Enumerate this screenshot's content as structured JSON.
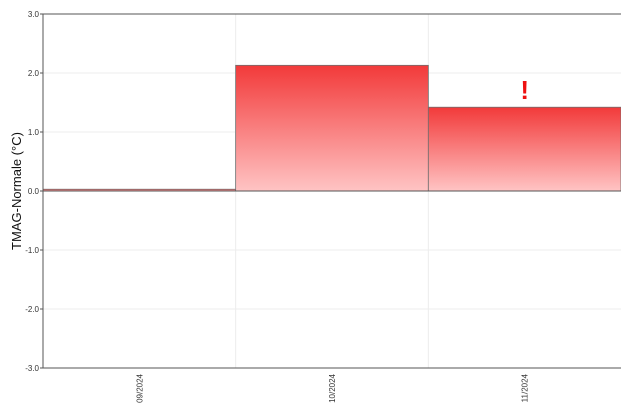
{
  "chart_data": {
    "type": "bar",
    "categories": [
      "09/2024",
      "10/2024",
      "11/2024"
    ],
    "values": [
      0.03,
      2.13,
      1.42
    ],
    "xlabel": "",
    "ylabel": "TMAG-Normale (°C)",
    "ylim": [
      -3.0,
      3.0
    ],
    "yticks": [
      "3.0",
      "2.0",
      "1.0",
      "0.0",
      "-1.0",
      "-2.0",
      "-3.0"
    ],
    "grid": true,
    "annotations": [
      {
        "category": "11/2024",
        "text": "!",
        "color": "#ee1111"
      }
    ],
    "colors": {
      "bar_top": "#f23a3a",
      "bar_bottom": "#ffc4c4",
      "bar_stroke": "#6e6e6e",
      "grid": "#ececec",
      "axis": "#555555"
    }
  }
}
